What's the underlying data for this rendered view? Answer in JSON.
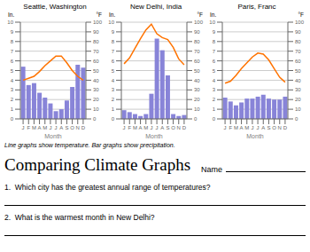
{
  "title": "Comparing Climate Graphs",
  "annotations": [
    "Line graphs show temperature. Bar graphs show precipitation.",
    "Name",
    "1.  Which city has the greatest annual range of temperatures?",
    "2.  What is the warmest month in New Delhi?"
  ],
  "chart_data": [
    {
      "type": "bar",
      "title": "Seattle, Washington",
      "xlabel": "Month",
      "ylabel": "In.",
      "y2label": "°F",
      "categories": [
        "J",
        "F",
        "M",
        "A",
        "M",
        "J",
        "J",
        "A",
        "S",
        "O",
        "N",
        "D"
      ],
      "series": [
        {
          "type": "bar",
          "axis": "y",
          "values": [
            5.4,
            3.5,
            3.7,
            2.7,
            2.2,
            1.6,
            0.8,
            1.0,
            1.9,
            3.3,
            5.6,
            5.3
          ]
        },
        {
          "type": "line",
          "axis": "y2",
          "values": [
            40,
            42,
            44,
            49,
            55,
            60,
            65,
            65,
            58,
            50,
            44,
            40
          ]
        }
      ],
      "ylim": [
        0,
        10
      ],
      "yticks": [
        0,
        1,
        2,
        3,
        4,
        5,
        6,
        7,
        8,
        9,
        10
      ],
      "y2lim": [
        0,
        100
      ],
      "y2ticks": [
        0,
        10,
        20,
        30,
        40,
        50,
        60,
        70,
        80,
        90,
        100
      ],
      "grid": true
    },
    {
      "type": "bar",
      "title": "New Delhi, India",
      "xlabel": "Month",
      "ylabel": "In.",
      "y2label": "°F",
      "categories": [
        "J",
        "F",
        "M",
        "A",
        "M",
        "J",
        "J",
        "A",
        "S",
        "O",
        "N",
        "D"
      ],
      "series": [
        {
          "type": "bar",
          "axis": "y",
          "values": [
            0.9,
            0.7,
            0.5,
            0.3,
            0.5,
            2.6,
            8.3,
            7.1,
            4.5,
            0.5,
            0.3,
            0.4
          ]
        },
        {
          "type": "line",
          "axis": "y2",
          "values": [
            57,
            63,
            73,
            83,
            92,
            98,
            88,
            84,
            82,
            74,
            62,
            56
          ]
        }
      ],
      "ylim": [
        0,
        10
      ],
      "yticks": [
        0,
        1,
        2,
        3,
        4,
        5,
        6,
        7,
        8,
        9,
        10
      ],
      "y2lim": [
        0,
        100
      ],
      "y2ticks": [
        0,
        10,
        20,
        30,
        40,
        50,
        60,
        70,
        80,
        90,
        100
      ],
      "grid": true
    },
    {
      "type": "bar",
      "title": "Paris, Franc",
      "xlabel": "Month",
      "ylabel": "In.",
      "y2label": "°F",
      "categories": [
        "J",
        "F",
        "M",
        "A",
        "M",
        "J",
        "J",
        "A",
        "S",
        "O",
        "N",
        "D"
      ],
      "series": [
        {
          "type": "bar",
          "axis": "y",
          "values": [
            2.2,
            1.8,
            1.4,
            1.7,
            2.1,
            2.1,
            2.3,
            2.5,
            2.1,
            2.0,
            2.0,
            2.3
          ]
        },
        {
          "type": "line",
          "axis": "y2",
          "values": [
            37,
            39,
            45,
            52,
            58,
            64,
            68,
            67,
            61,
            52,
            43,
            38
          ]
        }
      ],
      "ylim": [
        0,
        10
      ],
      "yticks": [
        0,
        1,
        2,
        3,
        4,
        5,
        6,
        7,
        8,
        9,
        10
      ],
      "y2lim": [
        0,
        100
      ],
      "y2ticks": [
        0,
        10,
        20,
        30,
        40,
        50,
        60,
        70,
        80,
        90,
        100
      ],
      "grid": true
    }
  ]
}
